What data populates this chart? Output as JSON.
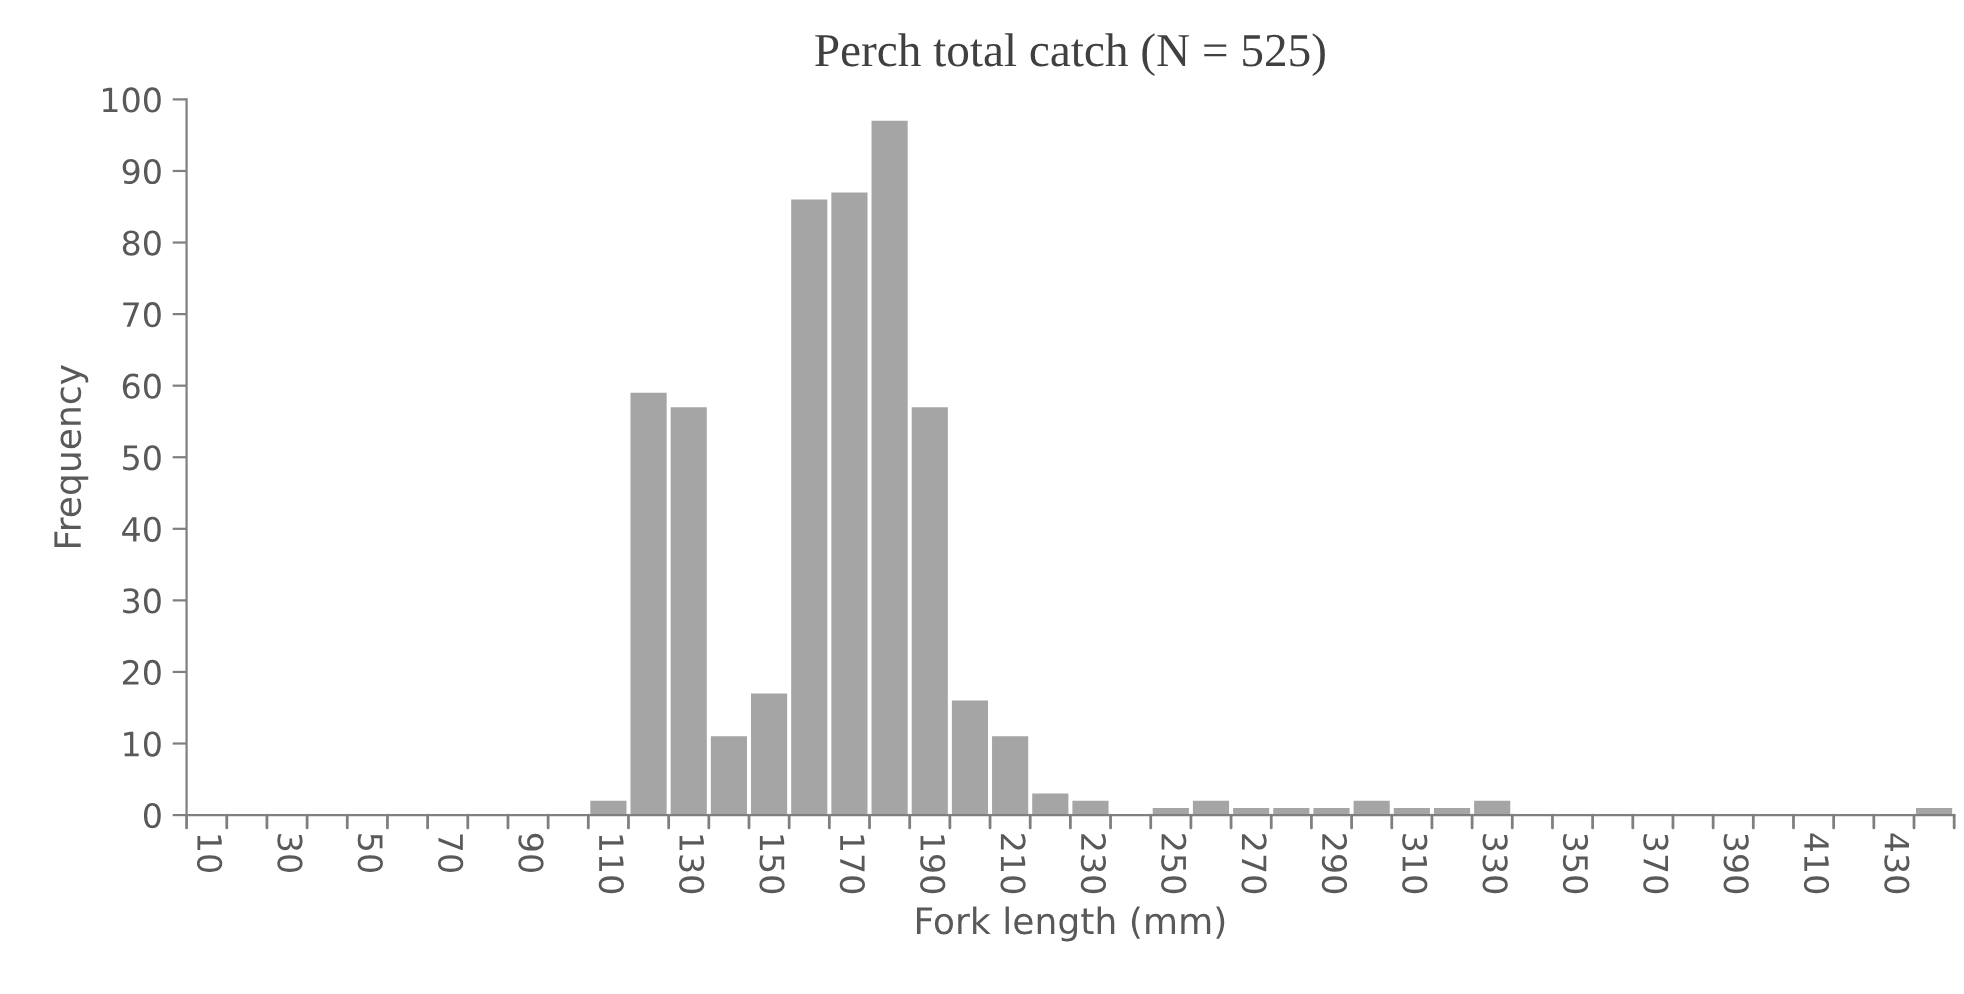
{
  "chart_data": {
    "type": "bar",
    "title": "Perch total catch (N = 525)",
    "xlabel": "Fork length (mm)",
    "ylabel": "Frequency",
    "categories": [
      "10",
      null,
      "30",
      null,
      "50",
      null,
      "70",
      null,
      "90",
      null,
      "110",
      null,
      "130",
      null,
      "150",
      null,
      "170",
      null,
      "190",
      null,
      "210",
      null,
      "230",
      null,
      "250",
      null,
      "270",
      null,
      "290",
      null,
      "310",
      null,
      "330",
      null,
      "350",
      null,
      "370",
      null,
      "390",
      null,
      "410",
      null,
      "430",
      null
    ],
    "values": [
      0,
      0,
      0,
      0,
      0,
      0,
      0,
      0,
      0,
      0,
      2,
      59,
      57,
      11,
      17,
      86,
      87,
      97,
      57,
      16,
      11,
      3,
      2,
      0,
      1,
      2,
      1,
      1,
      1,
      2,
      1,
      1,
      2,
      0,
      0,
      0,
      0,
      0,
      0,
      0,
      0,
      0,
      0,
      1
    ],
    "color": "#a5a5a5",
    "ylim": [
      0,
      100
    ],
    "yticks": [
      0,
      10,
      20,
      30,
      40,
      50,
      60,
      70,
      80,
      90,
      100
    ],
    "grid": false,
    "legend": false
  }
}
